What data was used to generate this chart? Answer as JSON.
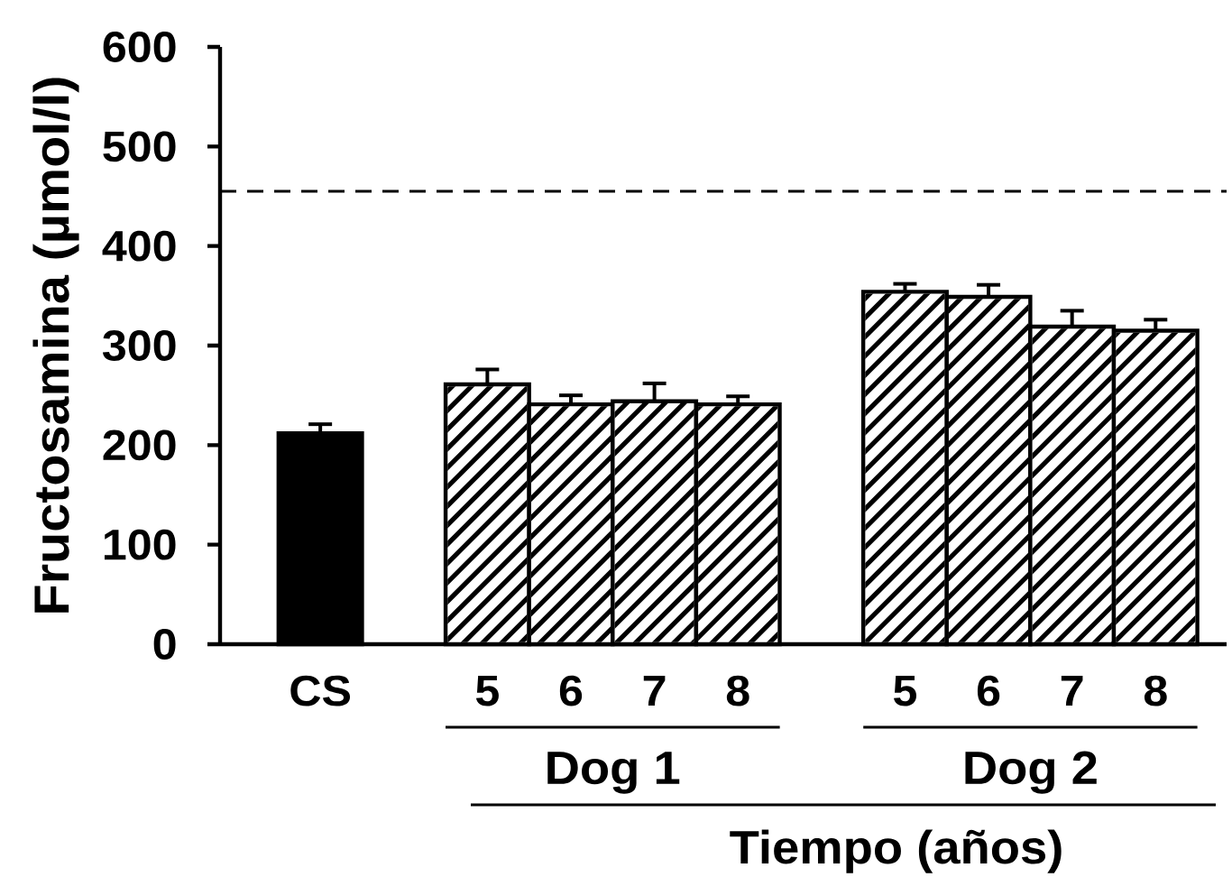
{
  "chart_data": {
    "type": "bar",
    "ylabel": "Fructosamina (µmol/l)",
    "xlabel": "Tiempo (años)",
    "categories": [
      "CS",
      null,
      "5",
      "6",
      "7",
      "8",
      null,
      "5",
      "6",
      "7",
      "8"
    ],
    "values": [
      212,
      null,
      261,
      241,
      244,
      241,
      null,
      354,
      349,
      319,
      315
    ],
    "errors": [
      [
        212,
        221
      ],
      null,
      [
        261,
        276
      ],
      [
        241,
        250
      ],
      [
        244,
        262
      ],
      [
        241,
        249
      ],
      null,
      [
        354,
        362
      ],
      [
        349,
        361
      ],
      [
        319,
        335
      ],
      [
        315,
        326
      ]
    ],
    "colors": [
      "#000000",
      null,
      "#ffffff",
      "#ffffff",
      "#ffffff",
      "#ffffff",
      null,
      "#ffffff",
      "#ffffff",
      "#ffffff",
      "#ffffff"
    ],
    "ylim": [
      0,
      600
    ],
    "yticks": [
      0,
      100,
      200,
      300,
      400,
      500,
      600
    ],
    "ref_lines": [
      {
        "axis": "y",
        "value": 455,
        "line_style": "dashed",
        "color": "#000000"
      }
    ],
    "annotations": [
      "Dog 1",
      "Dog 2"
    ]
  }
}
